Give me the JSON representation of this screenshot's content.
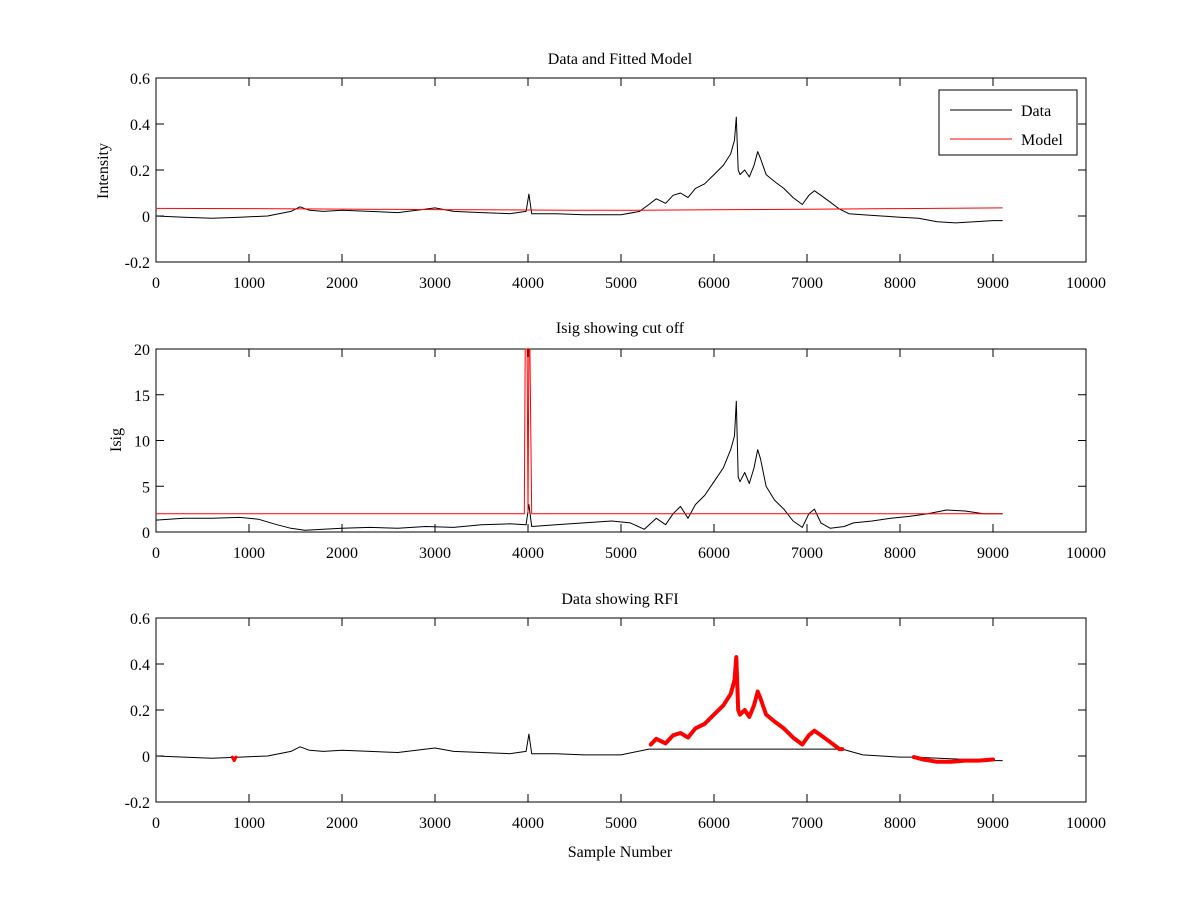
{
  "colors": {
    "data": "#000000",
    "model": "#ff0000",
    "rfi": "#ff0000",
    "axis": "#000000",
    "background": "#ffffff"
  },
  "chart_data": [
    {
      "type": "line",
      "title": "Data and Fitted Model",
      "xlabel": "",
      "ylabel": "Intensity",
      "xlim": [
        0,
        10000
      ],
      "ylim": [
        -0.2,
        0.6
      ],
      "xticks": [
        0,
        1000,
        2000,
        3000,
        4000,
        5000,
        6000,
        7000,
        8000,
        9000,
        10000
      ],
      "yticks": [
        -0.2,
        0,
        0.2,
        0.4,
        0.6
      ],
      "legend": {
        "position": "top-right",
        "entries": [
          "Data",
          "Model"
        ]
      },
      "series": [
        {
          "name": "Data",
          "color": "#000000",
          "x": [
            0,
            300,
            600,
            900,
            1200,
            1450,
            1550,
            1650,
            1800,
            2000,
            2300,
            2600,
            2900,
            3000,
            3200,
            3500,
            3800,
            3980,
            4010,
            4040,
            4300,
            4600,
            5000,
            5200,
            5300,
            5380,
            5480,
            5560,
            5640,
            5720,
            5800,
            5900,
            6000,
            6100,
            6180,
            6220,
            6240,
            6260,
            6280,
            6330,
            6380,
            6430,
            6470,
            6500,
            6560,
            6650,
            6750,
            6850,
            6950,
            7020,
            7080,
            7150,
            7250,
            7350,
            7450,
            7600,
            7800,
            8000,
            8200,
            8400,
            8600,
            8800,
            9000,
            9100
          ],
          "y": [
            0.0,
            -0.005,
            -0.01,
            -0.005,
            0.0,
            0.02,
            0.04,
            0.025,
            0.02,
            0.025,
            0.02,
            0.015,
            0.03,
            0.035,
            0.02,
            0.015,
            0.01,
            0.02,
            0.095,
            0.01,
            0.01,
            0.005,
            0.005,
            0.02,
            0.05,
            0.075,
            0.055,
            0.09,
            0.1,
            0.08,
            0.12,
            0.14,
            0.18,
            0.22,
            0.27,
            0.33,
            0.43,
            0.2,
            0.18,
            0.2,
            0.17,
            0.22,
            0.28,
            0.25,
            0.18,
            0.15,
            0.12,
            0.08,
            0.05,
            0.09,
            0.11,
            0.09,
            0.06,
            0.03,
            0.01,
            0.005,
            0.0,
            -0.005,
            -0.01,
            -0.025,
            -0.03,
            -0.025,
            -0.02,
            -0.02
          ]
        },
        {
          "name": "Model",
          "color": "#ff0000",
          "x": [
            0,
            1000,
            2000,
            3000,
            4000,
            4500,
            5000,
            6000,
            7000,
            8000,
            9100
          ],
          "y": [
            0.033,
            0.032,
            0.03,
            0.028,
            0.026,
            0.025,
            0.025,
            0.027,
            0.029,
            0.032,
            0.035
          ]
        }
      ]
    },
    {
      "type": "line",
      "title": "Isig showing cut off",
      "xlabel": "",
      "ylabel": "Isig",
      "xlim": [
        0,
        10000
      ],
      "ylim": [
        0,
        20
      ],
      "xticks": [
        0,
        1000,
        2000,
        3000,
        4000,
        5000,
        6000,
        7000,
        8000,
        9000,
        10000
      ],
      "yticks": [
        0,
        5,
        10,
        15,
        20
      ],
      "series": [
        {
          "name": "Isig",
          "color": "#000000",
          "x": [
            0,
            300,
            600,
            900,
            1100,
            1300,
            1450,
            1600,
            1800,
            2000,
            2300,
            2600,
            2900,
            3200,
            3500,
            3800,
            3980,
            4010,
            4040,
            4300,
            4600,
            4900,
            5100,
            5250,
            5380,
            5480,
            5560,
            5640,
            5720,
            5800,
            5900,
            6000,
            6100,
            6180,
            6220,
            6240,
            6260,
            6280,
            6330,
            6380,
            6430,
            6470,
            6500,
            6560,
            6650,
            6750,
            6850,
            6950,
            7020,
            7080,
            7150,
            7250,
            7400,
            7500,
            7700,
            7900,
            8100,
            8300,
            8500,
            8700,
            8900,
            9100
          ],
          "y": [
            1.3,
            1.5,
            1.5,
            1.6,
            1.4,
            0.8,
            0.4,
            0.2,
            0.3,
            0.4,
            0.5,
            0.4,
            0.6,
            0.5,
            0.8,
            0.9,
            0.8,
            3.0,
            0.6,
            0.8,
            1.0,
            1.2,
            1.0,
            0.3,
            1.5,
            0.8,
            2.0,
            2.8,
            1.5,
            3.0,
            4.0,
            5.5,
            7.0,
            9.0,
            10.5,
            14.3,
            6.0,
            5.5,
            6.5,
            5.3,
            7.0,
            9.0,
            8.0,
            5.0,
            3.5,
            2.5,
            1.2,
            0.5,
            2.0,
            2.5,
            1.0,
            0.4,
            0.6,
            1.0,
            1.2,
            1.5,
            1.7,
            2.0,
            2.4,
            2.3,
            2.0,
            2.0
          ]
        },
        {
          "name": "Cut off",
          "color": "#ff0000",
          "x": [
            0,
            3960,
            3970,
            3990,
            4000,
            4010,
            4020,
            4030,
            4040,
            4060,
            9100
          ],
          "y": [
            2.0,
            2.0,
            20,
            20,
            2.0,
            20,
            20,
            11.0,
            2.0,
            2.0,
            2.0
          ]
        }
      ]
    },
    {
      "type": "line",
      "title": "Data showing RFI",
      "xlabel": "Sample Number",
      "ylabel": "",
      "xlim": [
        0,
        10000
      ],
      "ylim": [
        -0.2,
        0.6
      ],
      "xticks": [
        0,
        1000,
        2000,
        3000,
        4000,
        5000,
        6000,
        7000,
        8000,
        9000,
        10000
      ],
      "yticks": [
        -0.2,
        0,
        0.2,
        0.4,
        0.6
      ],
      "series": [
        {
          "name": "Data",
          "color": "#000000",
          "x": [
            0,
            300,
            600,
            900,
            1200,
            1450,
            1550,
            1650,
            1800,
            2000,
            2300,
            2600,
            2900,
            3000,
            3200,
            3500,
            3800,
            3980,
            4010,
            4040,
            4300,
            4600,
            5000,
            5300,
            7380,
            7600,
            7800,
            8000,
            8150,
            9000,
            9100
          ],
          "y": [
            0.0,
            -0.005,
            -0.01,
            -0.005,
            0.0,
            0.02,
            0.04,
            0.025,
            0.02,
            0.025,
            0.02,
            0.015,
            0.03,
            0.035,
            0.02,
            0.015,
            0.01,
            0.02,
            0.095,
            0.01,
            0.01,
            0.005,
            0.005,
            0.03,
            0.03,
            0.005,
            0.0,
            -0.005,
            -0.005,
            -0.02,
            -0.02
          ]
        },
        {
          "name": "RFI segment 1",
          "color": "#ff0000",
          "x": [
            820,
            840,
            860
          ],
          "y": [
            -0.005,
            -0.02,
            -0.005
          ]
        },
        {
          "name": "RFI segment 2",
          "color": "#ff0000",
          "x": [
            5320,
            5380,
            5480,
            5560,
            5640,
            5720,
            5800,
            5900,
            6000,
            6100,
            6180,
            6220,
            6240,
            6260,
            6280,
            6330,
            6380,
            6430,
            6470,
            6500,
            6560,
            6650,
            6750,
            6850,
            6950,
            7020,
            7080,
            7150,
            7250,
            7350,
            7380
          ],
          "y": [
            0.05,
            0.075,
            0.055,
            0.09,
            0.1,
            0.08,
            0.12,
            0.14,
            0.18,
            0.22,
            0.27,
            0.33,
            0.43,
            0.2,
            0.18,
            0.2,
            0.17,
            0.22,
            0.28,
            0.25,
            0.18,
            0.15,
            0.12,
            0.08,
            0.05,
            0.09,
            0.11,
            0.09,
            0.06,
            0.03,
            0.03
          ]
        },
        {
          "name": "RFI segment 3",
          "color": "#ff0000",
          "x": [
            8150,
            8250,
            8400,
            8550,
            8700,
            8850,
            9000
          ],
          "y": [
            -0.005,
            -0.015,
            -0.025,
            -0.025,
            -0.02,
            -0.02,
            -0.015
          ]
        }
      ]
    }
  ]
}
